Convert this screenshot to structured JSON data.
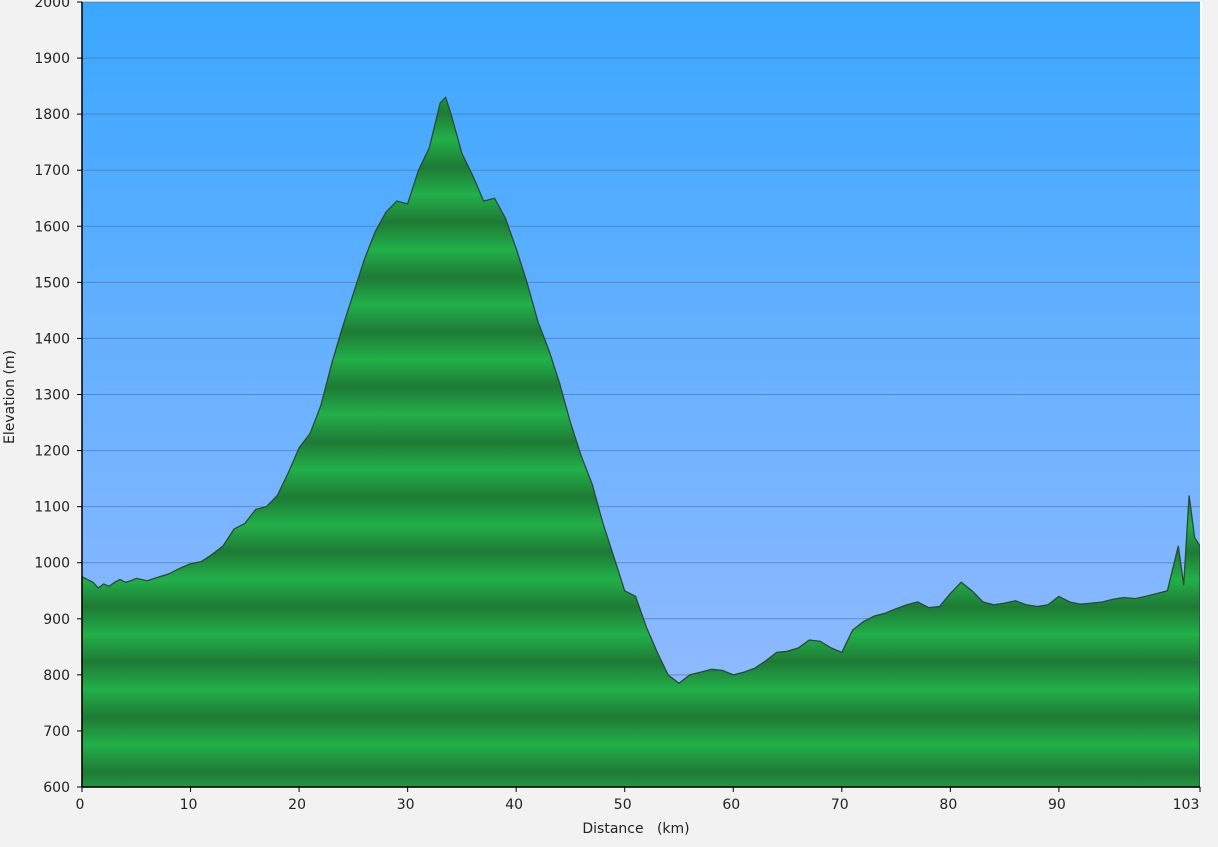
{
  "chart_data": {
    "type": "area",
    "xlabel": "Distance   (km)",
    "ylabel": "Elevation (m)",
    "xlim": [
      0,
      103
    ],
    "ylim": [
      600,
      2000
    ],
    "xticks": [
      0,
      10,
      20,
      30,
      40,
      50,
      60,
      70,
      80,
      90,
      103
    ],
    "yticks": [
      600,
      700,
      800,
      900,
      1000,
      1100,
      1200,
      1300,
      1400,
      1500,
      1600,
      1700,
      1800,
      1900,
      2000
    ],
    "grid": true,
    "colors": {
      "sky_top": "#3aa7ff",
      "sky_bottom": "#9cbcff",
      "fill_dark": "#1e7a35",
      "fill_light": "#22b04a",
      "outline": "#2a4a33"
    },
    "series": [
      {
        "x": [
          0,
          1,
          1.5,
          2,
          2.5,
          3,
          3.5,
          4,
          4.5,
          5,
          6,
          7,
          8,
          9,
          10,
          11,
          12,
          13,
          14,
          15,
          16,
          17,
          18,
          19,
          20,
          21,
          22,
          23,
          24,
          25,
          26,
          27,
          28,
          29,
          30,
          31,
          32,
          33,
          33.5,
          34,
          35,
          36,
          37,
          38,
          39,
          40,
          41,
          42,
          43,
          44,
          45,
          46,
          47,
          48,
          49,
          50,
          51,
          52,
          53,
          54,
          55,
          56,
          57,
          58,
          59,
          60,
          61,
          62,
          63,
          64,
          65,
          66,
          67,
          68,
          69,
          70,
          71,
          72,
          73,
          74,
          75,
          76,
          77,
          78,
          79,
          80,
          81,
          82,
          83,
          84,
          85,
          86,
          87,
          88,
          89,
          90,
          91,
          92,
          93,
          94,
          95,
          96,
          97,
          98,
          99,
          100,
          101,
          101.5,
          102,
          102.5,
          103
        ],
        "values": [
          975,
          965,
          955,
          962,
          958,
          965,
          970,
          965,
          968,
          972,
          968,
          974,
          980,
          990,
          998,
          1002,
          1015,
          1030,
          1060,
          1070,
          1095,
          1100,
          1120,
          1160,
          1205,
          1230,
          1280,
          1355,
          1420,
          1480,
          1540,
          1590,
          1625,
          1645,
          1640,
          1700,
          1740,
          1820,
          1830,
          1800,
          1730,
          1690,
          1645,
          1650,
          1615,
          1560,
          1500,
          1430,
          1380,
          1320,
          1250,
          1190,
          1140,
          1070,
          1010,
          950,
          940,
          885,
          840,
          800,
          785,
          800,
          805,
          810,
          808,
          800,
          805,
          812,
          825,
          840,
          842,
          848,
          862,
          860,
          848,
          840,
          880,
          895,
          905,
          910,
          918,
          925,
          930,
          920,
          922,
          945,
          965,
          950,
          930,
          925,
          928,
          932,
          925,
          922,
          925,
          940,
          930,
          926,
          928,
          930,
          935,
          938,
          936,
          940,
          945,
          950,
          1030,
          960,
          1120,
          1045,
          1030
        ]
      }
    ]
  }
}
